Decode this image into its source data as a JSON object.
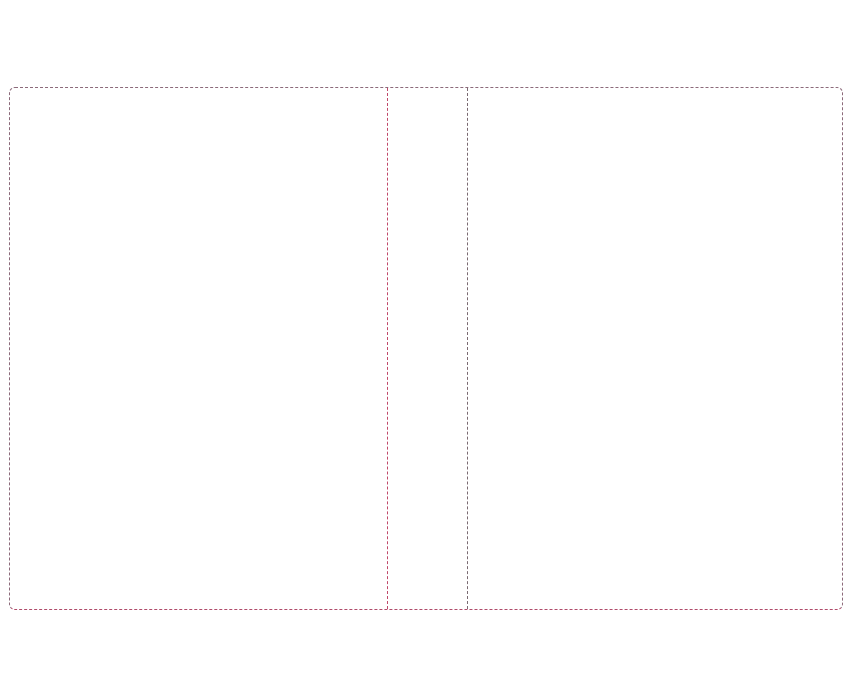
{
  "colors": {
    "frame_border": "#8c6a7a",
    "frame_border_bottom": "#b04a6a",
    "divider_left": "#c0486a",
    "divider_right": "#7a6a72"
  }
}
